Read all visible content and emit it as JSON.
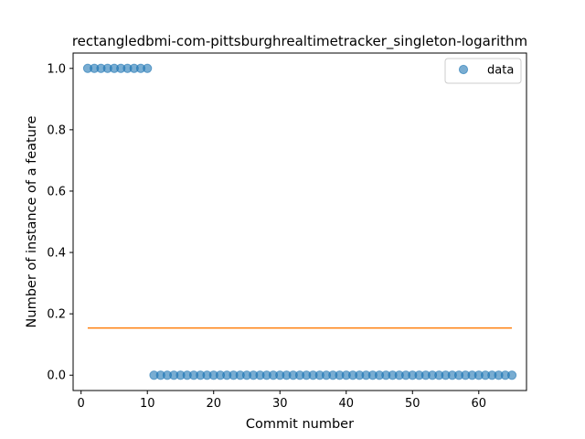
{
  "chart_data": {
    "type": "scatter",
    "title": "rectangledbmi-com-pittsburghrealtimetracker_singleton-logarithm",
    "xlabel": "Commit number",
    "ylabel": "Number of instance of a feature",
    "xlim": [
      -1.2,
      67.2
    ],
    "ylim": [
      -0.05,
      1.05
    ],
    "xticks": [
      0,
      10,
      20,
      30,
      40,
      50,
      60
    ],
    "yticks": [
      0.0,
      0.2,
      0.4,
      0.6,
      0.8,
      1.0
    ],
    "xtick_labels": [
      "0",
      "10",
      "20",
      "30",
      "40",
      "50",
      "60"
    ],
    "ytick_labels": [
      "0.0",
      "0.2",
      "0.4",
      "0.6",
      "0.8",
      "1.0"
    ],
    "legend": {
      "location": "top-right",
      "entries": [
        "data"
      ]
    },
    "series": [
      {
        "name": "data",
        "kind": "scatter",
        "color": "#1f77b4",
        "x": [
          1,
          2,
          3,
          4,
          5,
          6,
          7,
          8,
          9,
          10,
          11,
          12,
          13,
          14,
          15,
          16,
          17,
          18,
          19,
          20,
          21,
          22,
          23,
          24,
          25,
          26,
          27,
          28,
          29,
          30,
          31,
          32,
          33,
          34,
          35,
          36,
          37,
          38,
          39,
          40,
          41,
          42,
          43,
          44,
          45,
          46,
          47,
          48,
          49,
          50,
          51,
          52,
          53,
          54,
          55,
          56,
          57,
          58,
          59,
          60,
          61,
          62,
          63,
          64,
          65
        ],
        "y": [
          1,
          1,
          1,
          1,
          1,
          1,
          1,
          1,
          1,
          1,
          0,
          0,
          0,
          0,
          0,
          0,
          0,
          0,
          0,
          0,
          0,
          0,
          0,
          0,
          0,
          0,
          0,
          0,
          0,
          0,
          0,
          0,
          0,
          0,
          0,
          0,
          0,
          0,
          0,
          0,
          0,
          0,
          0,
          0,
          0,
          0,
          0,
          0,
          0,
          0,
          0,
          0,
          0,
          0,
          0,
          0,
          0,
          0,
          0,
          0,
          0,
          0,
          0,
          0,
          0
        ]
      },
      {
        "name": "fit",
        "kind": "line",
        "color": "#ff7f0e",
        "x": [
          1,
          65
        ],
        "y": [
          0.154,
          0.154
        ]
      }
    ]
  }
}
